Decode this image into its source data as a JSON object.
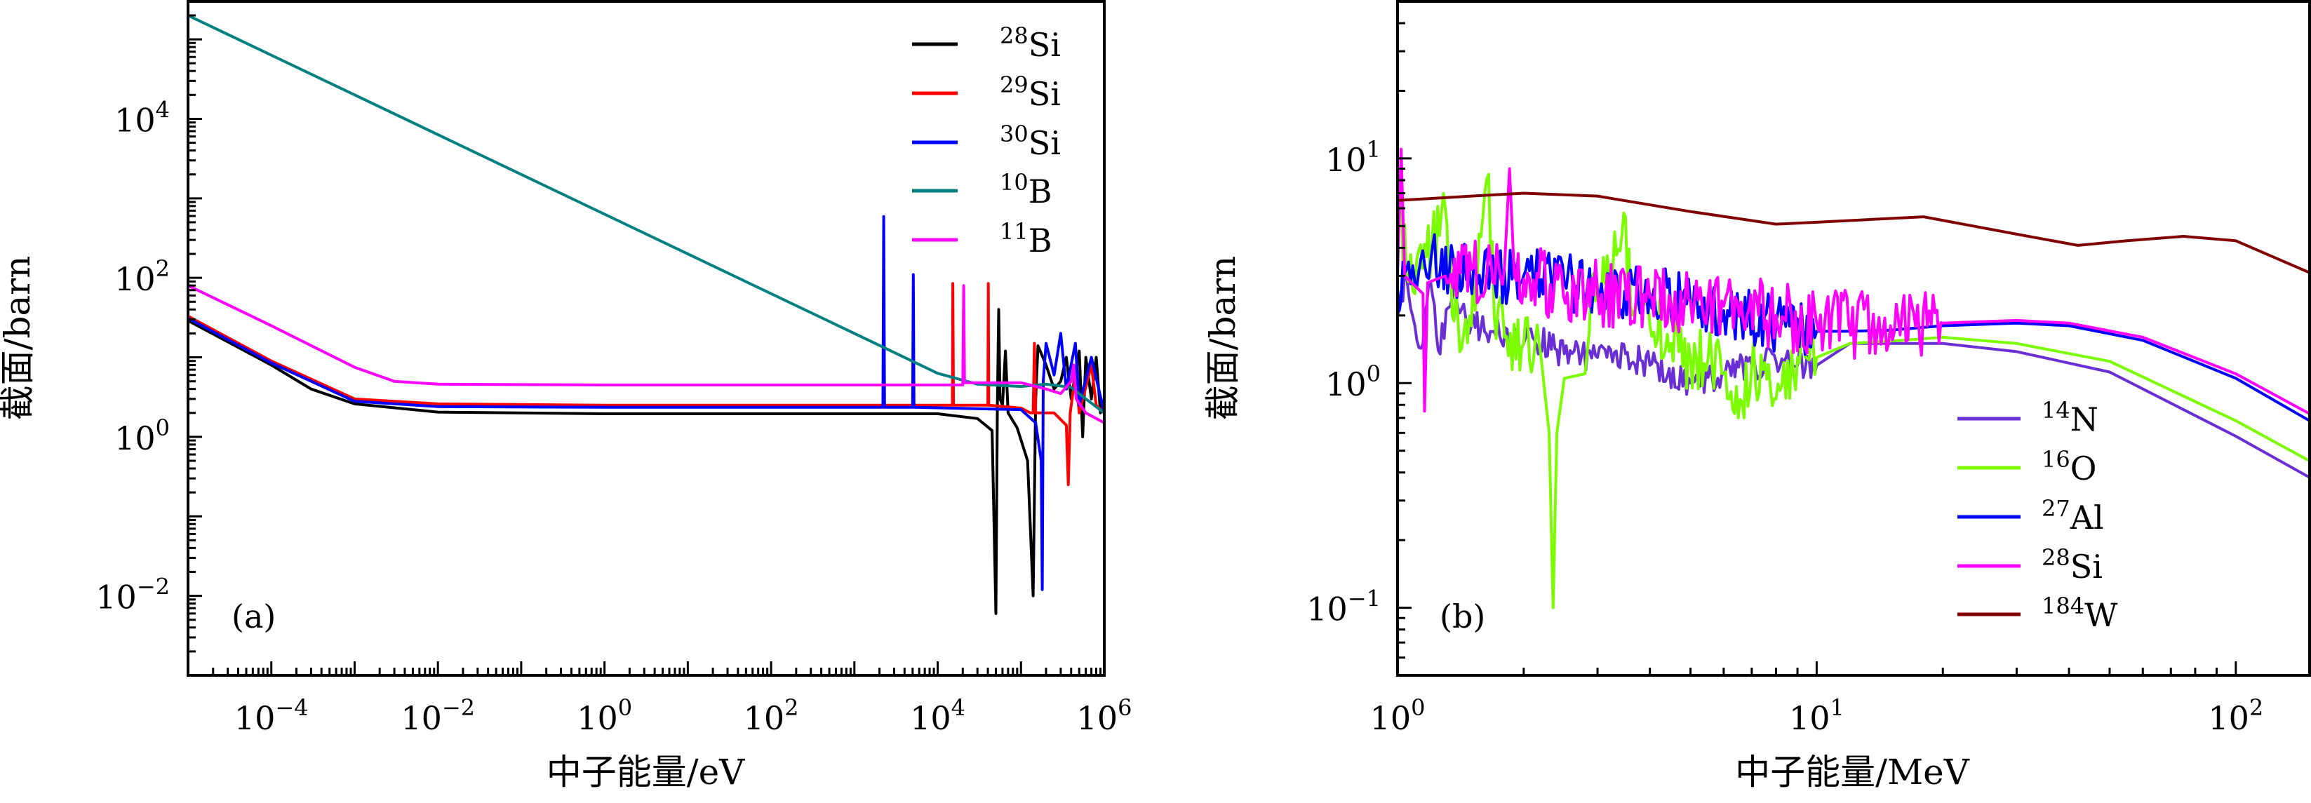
{
  "chart_data": [
    {
      "type": "line",
      "panel_label": "(a)",
      "xlabel": "中子能量/eV",
      "ylabel": "截面/barn",
      "xscale": "log",
      "yscale": "log",
      "xlim": [
        1e-05,
        1000000.0
      ],
      "ylim": [
        0.001,
        300000.0
      ],
      "x_ticks": [
        0.0001,
        0.01,
        1,
        100.0,
        10000.0,
        1000000.0
      ],
      "x_tick_labels": [
        "10^−4",
        "10^−2",
        "10^0",
        "10^2",
        "10^4",
        "10^6"
      ],
      "y_ticks": [
        0.01,
        1,
        100.0,
        10000.0
      ],
      "y_tick_labels": [
        "10^−2",
        "10^0",
        "10^2",
        "10^4"
      ],
      "legend_position": "top-right",
      "series": [
        {
          "name": "28Si",
          "mass": "28",
          "symbol": "Si",
          "color": "#000000",
          "points": [
            [
              1e-05,
              29
            ],
            [
              0.0001,
              8
            ],
            [
              0.0003,
              4
            ],
            [
              0.001,
              2.6
            ],
            [
              0.01,
              2.05
            ],
            [
              1,
              1.95
            ],
            [
              10000.0,
              1.95
            ],
            [
              30000.0,
              1.7
            ],
            [
              45000.0,
              1.2
            ],
            [
              50000.0,
              0.006
            ],
            [
              52000.0,
              2.5
            ],
            [
              54000.0,
              40
            ],
            [
              56000.0,
              3
            ],
            [
              60000.0,
              2.5
            ],
            [
              65000.0,
              12
            ],
            [
              70000.0,
              2
            ],
            [
              90000.0,
              1.3
            ],
            [
              120000.0,
              0.5
            ],
            [
              140000.0,
              0.01
            ],
            [
              150000.0,
              3
            ],
            [
              160000.0,
              14
            ],
            [
              200000.0,
              8
            ],
            [
              250000.0,
              4
            ],
            [
              300000.0,
              5
            ],
            [
              350000.0,
              10
            ],
            [
              400000.0,
              3
            ],
            [
              500000.0,
              12
            ],
            [
              550000.0,
              1
            ],
            [
              600000.0,
              10
            ],
            [
              700000.0,
              3
            ],
            [
              800000.0,
              10
            ],
            [
              900000.0,
              2
            ],
            [
              1000000.0,
              3
            ]
          ]
        },
        {
          "name": "29Si",
          "mass": "29",
          "symbol": "Si",
          "color": "#ff0000",
          "points": [
            [
              1e-05,
              33
            ],
            [
              0.0001,
              9
            ],
            [
              0.001,
              3
            ],
            [
              0.01,
              2.6
            ],
            [
              1,
              2.5
            ],
            [
              15000.0,
              2.5
            ],
            [
              15200.0,
              85
            ],
            [
              15500.0,
              2.5
            ],
            [
              40000.0,
              2.5
            ],
            [
              40500.0,
              85
            ],
            [
              41000.0,
              2.5
            ],
            [
              100000.0,
              2.3
            ],
            [
              130000.0,
              2
            ],
            [
              140000.0,
              2
            ],
            [
              145000.0,
              15
            ],
            [
              150000.0,
              2
            ],
            [
              250000.0,
              2
            ],
            [
              350000.0,
              1.4
            ],
            [
              370000.0,
              0.25
            ],
            [
              390000.0,
              2
            ],
            [
              450000.0,
              6
            ],
            [
              500000.0,
              2
            ],
            [
              700000.0,
              8
            ],
            [
              800000.0,
              2.5
            ],
            [
              1000000.0,
              2
            ]
          ]
        },
        {
          "name": "30Si",
          "mass": "30",
          "symbol": "Si",
          "color": "#0000ff",
          "points": [
            [
              1e-05,
              31
            ],
            [
              0.0001,
              8.5
            ],
            [
              0.001,
              2.8
            ],
            [
              0.01,
              2.4
            ],
            [
              1,
              2.35
            ],
            [
              2200.0,
              2.35
            ],
            [
              2250.0,
              590
            ],
            [
              2300.0,
              2.35
            ],
            [
              5000.0,
              2.35
            ],
            [
              5100.0,
              110
            ],
            [
              5200.0,
              2.35
            ],
            [
              100000.0,
              2.2
            ],
            [
              150000.0,
              1.5
            ],
            [
              175000.0,
              0.5
            ],
            [
              180000.0,
              0.012
            ],
            [
              185000.0,
              5
            ],
            [
              200000.0,
              15
            ],
            [
              250000.0,
              6
            ],
            [
              300000.0,
              20
            ],
            [
              350000.0,
              4
            ],
            [
              450000.0,
              15
            ],
            [
              500000.0,
              2.5
            ],
            [
              700000.0,
              10
            ],
            [
              1000000.0,
              2
            ]
          ]
        },
        {
          "name": "10B",
          "mass": "10",
          "symbol": "B",
          "color": "#008080",
          "points": [
            [
              1e-05,
              200000.0
            ],
            [
              0.001,
              20000.0
            ],
            [
              0.1,
              2000
            ],
            [
              10,
              200
            ],
            [
              1000.0,
              20
            ],
            [
              10000.0,
              6.3
            ],
            [
              30000.0,
              4.6
            ],
            [
              100000.0,
              4.3
            ],
            [
              200000.0,
              4.6
            ],
            [
              400000.0,
              4.2
            ],
            [
              600000.0,
              3
            ],
            [
              1000000.0,
              2
            ]
          ]
        },
        {
          "name": "11B",
          "mass": "11",
          "symbol": "B",
          "color": "#ff00ff",
          "points": [
            [
              1e-05,
              80
            ],
            [
              0.0001,
              25
            ],
            [
              0.001,
              7.5
            ],
            [
              0.003,
              5
            ],
            [
              0.01,
              4.6
            ],
            [
              1,
              4.5
            ],
            [
              20000.0,
              4.5
            ],
            [
              20500.0,
              80
            ],
            [
              21000.0,
              4.8
            ],
            [
              100000.0,
              4.8
            ],
            [
              200000.0,
              4
            ],
            [
              300000.0,
              3.5
            ],
            [
              400000.0,
              5
            ],
            [
              430000.0,
              8
            ],
            [
              460000.0,
              3
            ],
            [
              600000.0,
              2
            ],
            [
              1000000.0,
              1.5
            ]
          ]
        }
      ]
    },
    {
      "type": "line",
      "panel_label": "(b)",
      "xlabel": "中子能量/MeV",
      "ylabel": "截面/barn",
      "xscale": "log",
      "yscale": "log",
      "xlim": [
        1,
        150
      ],
      "ylim": [
        0.05,
        50
      ],
      "x_ticks": [
        1,
        10,
        100
      ],
      "x_tick_labels": [
        "10^0",
        "10^1",
        "10^2"
      ],
      "y_ticks": [
        0.1,
        1,
        10
      ],
      "y_tick_labels": [
        "10^−1",
        "10^0",
        "10^1"
      ],
      "legend_position": "lower-right",
      "series": [
        {
          "name": "14N",
          "mass": "14",
          "symbol": "N",
          "color": "#6a2fd4",
          "jitter": {
            "ranges": [
              [
                1,
                10
              ]
            ],
            "amp": 0.15
          },
          "points": [
            [
              1,
              2
            ],
            [
              1.05,
              3
            ],
            [
              1.1,
              1.8
            ],
            [
              1.15,
              1.5
            ],
            [
              1.2,
              2.8
            ],
            [
              1.25,
              1.4
            ],
            [
              1.35,
              2.4
            ],
            [
              1.5,
              1.8
            ],
            [
              1.7,
              1.7
            ],
            [
              2,
              1.5
            ],
            [
              2.1,
              1.6
            ],
            [
              2.5,
              1.35
            ],
            [
              3,
              1.3
            ],
            [
              3.5,
              1.35
            ],
            [
              4,
              1.2
            ],
            [
              5,
              1.0
            ],
            [
              6,
              1.1
            ],
            [
              7,
              1.2
            ],
            [
              8,
              1.25
            ],
            [
              9,
              1.2
            ],
            [
              10,
              1.2
            ],
            [
              12,
              1.5
            ],
            [
              20,
              1.5
            ],
            [
              30,
              1.38
            ],
            [
              50,
              1.12
            ],
            [
              100,
              0.58
            ],
            [
              150,
              0.38
            ]
          ]
        },
        {
          "name": "16O",
          "mass": "16",
          "symbol": "O",
          "color": "#7cfc00",
          "jitter": {
            "ranges": [
              [
                1,
                2.2
              ],
              [
                2.8,
                10
              ]
            ],
            "amp": 0.35
          },
          "points": [
            [
              1,
              8
            ],
            [
              1.05,
              3
            ],
            [
              1.1,
              2.5
            ],
            [
              1.3,
              6
            ],
            [
              1.35,
              2
            ],
            [
              1.5,
              1.8
            ],
            [
              1.65,
              8.5
            ],
            [
              1.7,
              2
            ],
            [
              1.8,
              1.6
            ],
            [
              2,
              1.5
            ],
            [
              2.2,
              1.3
            ],
            [
              2.3,
              0.6
            ],
            [
              2.35,
              0.1
            ],
            [
              2.4,
              0.6
            ],
            [
              2.5,
              1.05
            ],
            [
              2.8,
              1.1
            ],
            [
              2.9,
              2.8
            ],
            [
              3.2,
              3
            ],
            [
              3.5,
              5.5
            ],
            [
              3.6,
              2.2
            ],
            [
              4,
              1.8
            ],
            [
              5,
              1.3
            ],
            [
              6,
              1.1
            ],
            [
              6.5,
              0.7
            ],
            [
              7,
              1.2
            ],
            [
              8,
              0.85
            ],
            [
              9,
              1.3
            ],
            [
              10,
              1.3
            ],
            [
              12,
              1.5
            ],
            [
              16,
              1.55
            ],
            [
              20,
              1.6
            ],
            [
              30,
              1.5
            ],
            [
              50,
              1.25
            ],
            [
              100,
              0.68
            ],
            [
              150,
              0.45
            ]
          ]
        },
        {
          "name": "27Al",
          "mass": "27",
          "symbol": "Al",
          "color": "#0000ff",
          "jitter": {
            "ranges": [
              [
                1,
                10
              ]
            ],
            "amp": 0.3
          },
          "points": [
            [
              1,
              2.6
            ],
            [
              1.05,
              3.2
            ],
            [
              1.1,
              2.8
            ],
            [
              1.2,
              3.5
            ],
            [
              1.4,
              3.2
            ],
            [
              1.6,
              3.0
            ],
            [
              2,
              3.0
            ],
            [
              2.5,
              2.8
            ],
            [
              3,
              2.6
            ],
            [
              4,
              2.5
            ],
            [
              5,
              2.3
            ],
            [
              6,
              2.1
            ],
            [
              8,
              1.85
            ],
            [
              10,
              1.7
            ],
            [
              12,
              1.7
            ],
            [
              15,
              1.72
            ],
            [
              20,
              1.8
            ],
            [
              30,
              1.85
            ],
            [
              40,
              1.8
            ],
            [
              60,
              1.55
            ],
            [
              100,
              1.05
            ],
            [
              150,
              0.68
            ]
          ]
        },
        {
          "name": "28Si",
          "mass": "28",
          "symbol": "Si",
          "color": "#ff00ff",
          "jitter": {
            "ranges": [
              [
                1.2,
                1.8
              ],
              [
                1.9,
                20
              ]
            ],
            "amp": 0.35
          },
          "points": [
            [
              1,
              3
            ],
            [
              1.02,
              11
            ],
            [
              1.04,
              3
            ],
            [
              1.15,
              2.5
            ],
            [
              1.16,
              0.75
            ],
            [
              1.18,
              2.8
            ],
            [
              1.3,
              3
            ],
            [
              1.5,
              3.2
            ],
            [
              1.8,
              3.3
            ],
            [
              1.85,
              9
            ],
            [
              1.9,
              3
            ],
            [
              2,
              2.9
            ],
            [
              3,
              2.5
            ],
            [
              4,
              2.4
            ],
            [
              5,
              2.3
            ],
            [
              6,
              2.2
            ],
            [
              8,
              2.0
            ],
            [
              10,
              1.85
            ],
            [
              15,
              1.8
            ],
            [
              20,
              1.85
            ],
            [
              30,
              1.9
            ],
            [
              40,
              1.85
            ],
            [
              60,
              1.6
            ],
            [
              100,
              1.1
            ],
            [
              150,
              0.73
            ]
          ]
        },
        {
          "name": "184W",
          "mass": "184",
          "symbol": "W",
          "color": "#800000",
          "points": [
            [
              1,
              6.5
            ],
            [
              1.5,
              6.8
            ],
            [
              2,
              7.0
            ],
            [
              3,
              6.8
            ],
            [
              5,
              5.8
            ],
            [
              8,
              5.1
            ],
            [
              10,
              5.2
            ],
            [
              18,
              5.5
            ],
            [
              30,
              4.6
            ],
            [
              42,
              4.1
            ],
            [
              55,
              4.3
            ],
            [
              75,
              4.5
            ],
            [
              100,
              4.3
            ],
            [
              150,
              3.1
            ]
          ]
        }
      ]
    }
  ]
}
